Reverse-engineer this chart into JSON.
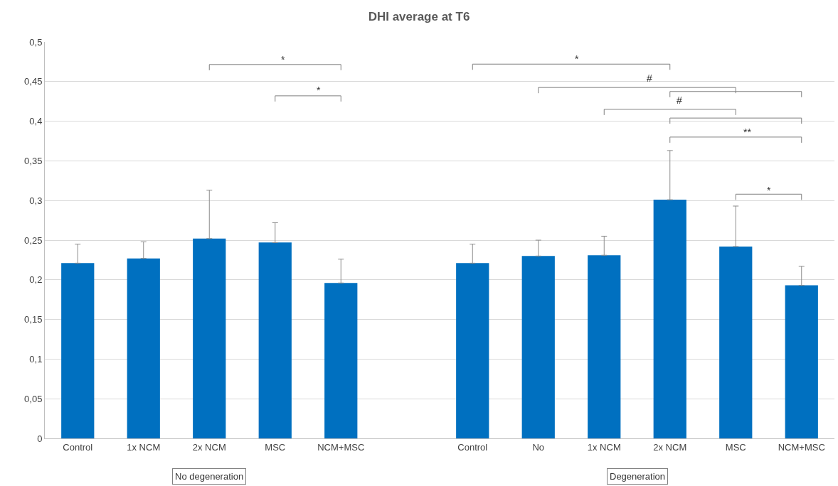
{
  "chart_data": {
    "type": "bar",
    "title": "DHI average at T6",
    "categories": [
      "Control",
      "1x NCM",
      "2x NCM",
      "MSC",
      "NCM+MSC",
      null,
      "Control",
      "No",
      "1x NCM",
      "2x NCM",
      "MSC",
      "NCM+MSC"
    ],
    "values": [
      0.221,
      0.227,
      0.252,
      0.247,
      0.196,
      null,
      0.221,
      0.23,
      0.231,
      0.301,
      0.242,
      0.193
    ],
    "errors": [
      [
        0.221,
        0.245
      ],
      [
        0.227,
        0.248
      ],
      [
        0.252,
        0.313
      ],
      [
        0.247,
        0.272
      ],
      [
        0.196,
        0.226
      ],
      null,
      [
        0.221,
        0.245
      ],
      [
        0.23,
        0.25
      ],
      [
        0.231,
        0.255
      ],
      [
        0.301,
        0.363
      ],
      [
        0.242,
        0.293
      ],
      [
        0.193,
        0.217
      ]
    ],
    "color": "#0070c0",
    "ylim": [
      0,
      0.5
    ],
    "yticks": [
      0,
      {
        "value": 0.05,
        "label": "0,05"
      },
      {
        "value": 0.1,
        "label": "0,1"
      },
      {
        "value": 0.15,
        "label": "0,15"
      },
      {
        "value": 0.2,
        "label": "0,2"
      },
      {
        "value": 0.25,
        "label": "0,25"
      },
      {
        "value": 0.3,
        "label": "0,3"
      },
      {
        "value": 0.35,
        "label": "0,35"
      },
      {
        "value": 0.4,
        "label": "0,4"
      },
      {
        "value": 0.45,
        "label": "0,45"
      },
      {
        "value": 0.5,
        "label": "0,5"
      }
    ],
    "grid": "y",
    "annotations": [
      "*",
      "*",
      "*",
      "#",
      "#",
      "**",
      "*",
      "No degeneration",
      "Degeneration"
    ]
  }
}
